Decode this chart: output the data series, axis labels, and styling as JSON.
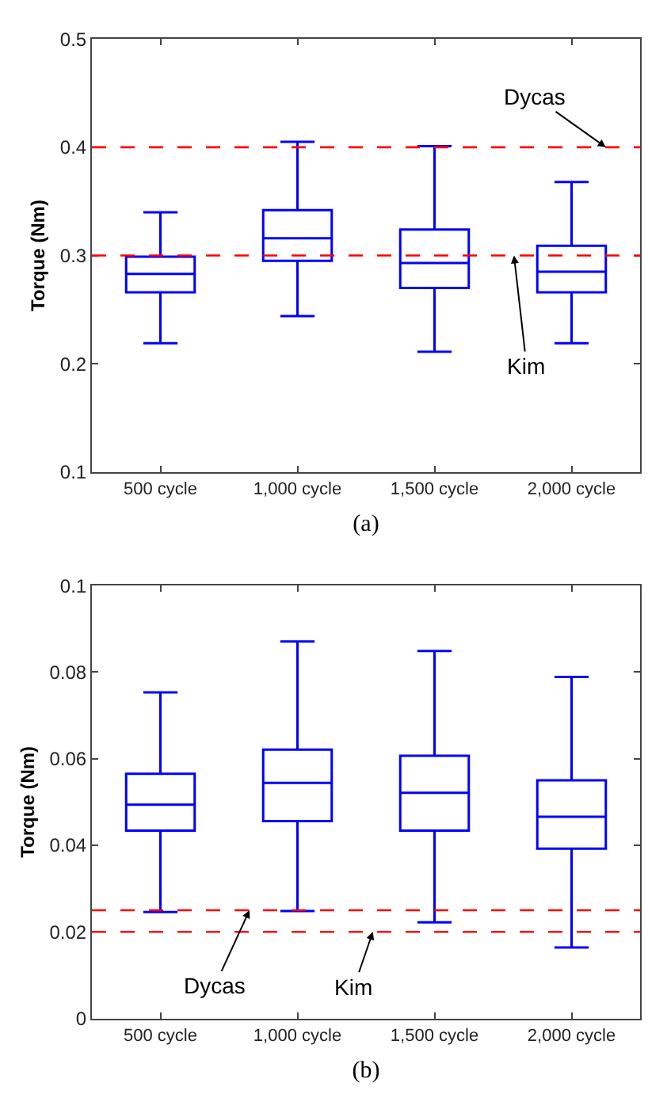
{
  "chart_data": [
    {
      "type": "box",
      "ylabel": "Torque (Nm)",
      "xlabel": "(a)",
      "categories": [
        "500 cycle",
        "1,000 cycle",
        "1,500 cycle",
        "2,000 cycle"
      ],
      "series": [
        {
          "color": "#0000ff",
          "boxes": [
            {
              "low": 0.219,
              "q1": 0.266,
              "median": 0.283,
              "q3": 0.299,
              "high": 0.34
            },
            {
              "low": 0.244,
              "q1": 0.295,
              "median": 0.316,
              "q3": 0.342,
              "high": 0.405
            },
            {
              "low": 0.211,
              "q1": 0.27,
              "median": 0.293,
              "q3": 0.324,
              "high": 0.401
            },
            {
              "low": 0.219,
              "q1": 0.266,
              "median": 0.285,
              "q3": 0.309,
              "high": 0.368
            }
          ]
        }
      ],
      "ylim": [
        0.1,
        0.5
      ],
      "yticks": [
        0.1,
        0.2,
        0.3,
        0.4,
        0.5
      ],
      "ref_lines": [
        {
          "axis": "y",
          "value": 0.4,
          "label": "Dycas",
          "color": "#ff0000",
          "line_style": "dashed"
        },
        {
          "axis": "y",
          "value": 0.3,
          "label": "Kim",
          "color": "#ff0000",
          "line_style": "dashed"
        }
      ]
    },
    {
      "type": "box",
      "ylabel": "Torque (Nm)",
      "xlabel": "(b)",
      "categories": [
        "500 cycle",
        "1,000 cycle",
        "1,500 cycle",
        "2,000 cycle"
      ],
      "series": [
        {
          "color": "#0000ff",
          "boxes": [
            {
              "low": 0.0246,
              "q1": 0.0434,
              "median": 0.0494,
              "q3": 0.0565,
              "high": 0.0753
            },
            {
              "low": 0.0248,
              "q1": 0.0456,
              "median": 0.0544,
              "q3": 0.0621,
              "high": 0.0871
            },
            {
              "low": 0.0222,
              "q1": 0.0434,
              "median": 0.0521,
              "q3": 0.0607,
              "high": 0.0849
            },
            {
              "low": 0.0164,
              "q1": 0.0392,
              "median": 0.0466,
              "q3": 0.055,
              "high": 0.0789
            }
          ]
        }
      ],
      "ylim": [
        0,
        0.1
      ],
      "yticks": [
        0,
        0.02,
        0.04,
        0.06,
        0.08,
        0.1
      ],
      "ref_lines": [
        {
          "axis": "y",
          "value": 0.025,
          "label": "Dycas",
          "color": "#ff0000",
          "line_style": "dashed"
        },
        {
          "axis": "y",
          "value": 0.02,
          "label": "Kim",
          "color": "#ff0000",
          "line_style": "dashed"
        }
      ]
    }
  ]
}
